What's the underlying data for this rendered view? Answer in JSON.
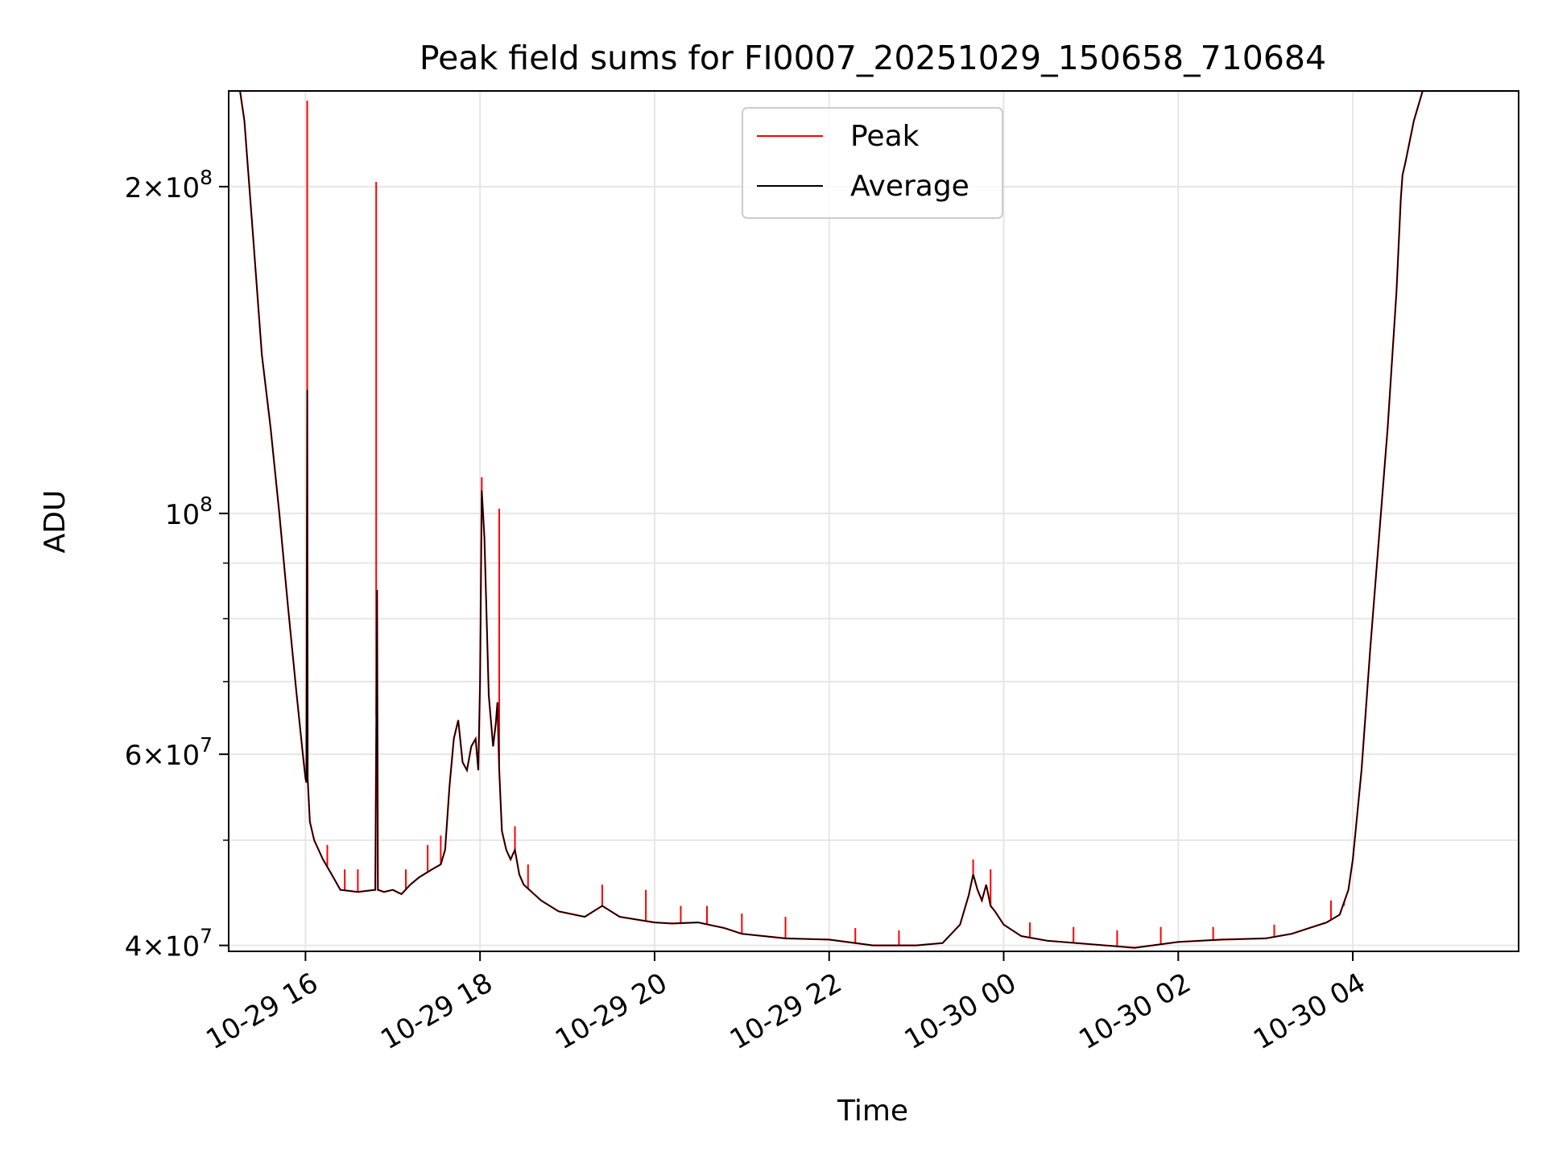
{
  "chart_data": {
    "type": "line",
    "title": "Peak field sums for FI0007_20251029_150658_710684",
    "xlabel": "Time",
    "ylabel": "ADU",
    "y_scale": "log",
    "ylim": [
      39500000,
      245000000
    ],
    "x_range_hours": [
      15.12,
      29.9
    ],
    "grid": true,
    "legend_position": "upper center",
    "legend": [
      {
        "name": "Peak",
        "color": "#ff0000"
      },
      {
        "name": "Average",
        "color": "#000000"
      }
    ],
    "x_ticks": [
      {
        "hour": 16,
        "label": "10-29 16"
      },
      {
        "hour": 18,
        "label": "10-29 18"
      },
      {
        "hour": 20,
        "label": "10-29 20"
      },
      {
        "hour": 22,
        "label": "10-29 22"
      },
      {
        "hour": 24,
        "label": "10-30 00"
      },
      {
        "hour": 26,
        "label": "10-30 02"
      },
      {
        "hour": 28,
        "label": "10-30 04"
      }
    ],
    "y_ticks_major": [
      {
        "value": 40000000,
        "base": "4",
        "exp": "7"
      },
      {
        "value": 60000000,
        "base": "6",
        "exp": "7"
      },
      {
        "value": 100000000,
        "base": "",
        "exp": "8"
      },
      {
        "value": 200000000,
        "base": "2",
        "exp": "8"
      }
    ],
    "y_ticks_minor": [
      50000000,
      70000000,
      80000000,
      90000000
    ],
    "series": [
      {
        "name": "Average",
        "color": "#000000",
        "points": [
          [
            15.12,
            245000000
          ],
          [
            15.25,
            245000000
          ],
          [
            15.3,
            230000000
          ],
          [
            15.4,
            180000000
          ],
          [
            15.5,
            140000000
          ],
          [
            15.6,
            120000000
          ],
          [
            15.7,
            100000000
          ],
          [
            15.8,
            82000000
          ],
          [
            15.9,
            68000000
          ],
          [
            15.97,
            60000000
          ],
          [
            16.0,
            57000000
          ],
          [
            16.01,
            56500000
          ],
          [
            16.02,
            130000000
          ],
          [
            16.025,
            57000000
          ],
          [
            16.05,
            52000000
          ],
          [
            16.1,
            50000000
          ],
          [
            16.2,
            48000000
          ],
          [
            16.3,
            46500000
          ],
          [
            16.4,
            45000000
          ],
          [
            16.6,
            44800000
          ],
          [
            16.8,
            45000000
          ],
          [
            16.82,
            85000000
          ],
          [
            16.83,
            45000000
          ],
          [
            16.9,
            44800000
          ],
          [
            17.0,
            45000000
          ],
          [
            17.1,
            44600000
          ],
          [
            17.2,
            45500000
          ],
          [
            17.3,
            46200000
          ],
          [
            17.45,
            47000000
          ],
          [
            17.55,
            47500000
          ],
          [
            17.6,
            49000000
          ],
          [
            17.65,
            56000000
          ],
          [
            17.7,
            62000000
          ],
          [
            17.75,
            64500000
          ],
          [
            17.8,
            59000000
          ],
          [
            17.85,
            58000000
          ],
          [
            17.9,
            61000000
          ],
          [
            17.95,
            62000000
          ],
          [
            17.98,
            58000000
          ],
          [
            18.0,
            70000000
          ],
          [
            18.02,
            105000000
          ],
          [
            18.05,
            95000000
          ],
          [
            18.1,
            68000000
          ],
          [
            18.15,
            61000000
          ],
          [
            18.18,
            64000000
          ],
          [
            18.2,
            67000000
          ],
          [
            18.22,
            58000000
          ],
          [
            18.25,
            51000000
          ],
          [
            18.3,
            49000000
          ],
          [
            18.35,
            48000000
          ],
          [
            18.4,
            49000000
          ],
          [
            18.45,
            46500000
          ],
          [
            18.5,
            45500000
          ],
          [
            18.7,
            44000000
          ],
          [
            18.9,
            43000000
          ],
          [
            19.2,
            42500000
          ],
          [
            19.4,
            43500000
          ],
          [
            19.6,
            42500000
          ],
          [
            20.0,
            42000000
          ],
          [
            20.2,
            41900000
          ],
          [
            20.5,
            42000000
          ],
          [
            20.8,
            41500000
          ],
          [
            21.0,
            41000000
          ],
          [
            21.5,
            40600000
          ],
          [
            22.0,
            40500000
          ],
          [
            22.5,
            40000000
          ],
          [
            23.0,
            40000000
          ],
          [
            23.3,
            40200000
          ],
          [
            23.5,
            41800000
          ],
          [
            23.6,
            44500000
          ],
          [
            23.65,
            46500000
          ],
          [
            23.7,
            45000000
          ],
          [
            23.75,
            44000000
          ],
          [
            23.8,
            45500000
          ],
          [
            23.85,
            43500000
          ],
          [
            23.9,
            43000000
          ],
          [
            24.0,
            41800000
          ],
          [
            24.2,
            40800000
          ],
          [
            24.5,
            40400000
          ],
          [
            25.0,
            40100000
          ],
          [
            25.5,
            39800000
          ],
          [
            26.0,
            40300000
          ],
          [
            26.5,
            40500000
          ],
          [
            27.0,
            40600000
          ],
          [
            27.3,
            41000000
          ],
          [
            27.5,
            41500000
          ],
          [
            27.7,
            42000000
          ],
          [
            27.85,
            42700000
          ],
          [
            27.95,
            45000000
          ],
          [
            28.0,
            48000000
          ],
          [
            28.1,
            58000000
          ],
          [
            28.2,
            75000000
          ],
          [
            28.3,
            95000000
          ],
          [
            28.4,
            120000000
          ],
          [
            28.5,
            160000000
          ],
          [
            28.55,
            195000000
          ],
          [
            28.57,
            205000000
          ],
          [
            28.6,
            210000000
          ],
          [
            28.7,
            230000000
          ],
          [
            28.8,
            245000000
          ],
          [
            29.9,
            245000000
          ]
        ]
      },
      {
        "name": "Peak",
        "color": "#ff0000",
        "spikes": [
          [
            16.02,
            240000000
          ],
          [
            16.81,
            202000000
          ],
          [
            18.02,
            108000000
          ],
          [
            18.22,
            101000000
          ],
          [
            16.25,
            49500000
          ],
          [
            16.45,
            47000000
          ],
          [
            16.6,
            47000000
          ],
          [
            17.15,
            47000000
          ],
          [
            17.4,
            49500000
          ],
          [
            17.55,
            50500000
          ],
          [
            18.4,
            51500000
          ],
          [
            18.55,
            47500000
          ],
          [
            19.4,
            45500000
          ],
          [
            19.9,
            45000000
          ],
          [
            20.3,
            43500000
          ],
          [
            20.6,
            43500000
          ],
          [
            21.0,
            42800000
          ],
          [
            21.5,
            42500000
          ],
          [
            22.3,
            41500000
          ],
          [
            22.8,
            41300000
          ],
          [
            23.65,
            48000000
          ],
          [
            23.85,
            47000000
          ],
          [
            24.3,
            42000000
          ],
          [
            24.8,
            41600000
          ],
          [
            25.3,
            41300000
          ],
          [
            25.8,
            41600000
          ],
          [
            26.4,
            41600000
          ],
          [
            27.1,
            41800000
          ],
          [
            27.75,
            44000000
          ],
          [
            27.9,
            43500000
          ]
        ]
      }
    ]
  }
}
